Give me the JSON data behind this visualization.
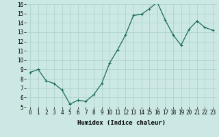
{
  "x": [
    0,
    1,
    2,
    3,
    4,
    5,
    6,
    7,
    8,
    9,
    10,
    11,
    12,
    13,
    14,
    15,
    16,
    17,
    18,
    19,
    20,
    21,
    22,
    23
  ],
  "y": [
    8.7,
    9.0,
    7.8,
    7.5,
    6.8,
    5.3,
    5.7,
    5.6,
    6.3,
    7.5,
    9.7,
    11.1,
    12.7,
    14.8,
    14.9,
    15.5,
    16.2,
    14.3,
    12.7,
    11.6,
    13.3,
    14.2,
    13.5,
    13.2
  ],
  "line_color": "#1a6b5a",
  "marker": "+",
  "marker_size": 3,
  "marker_lw": 0.8,
  "bg_color": "#cce8e4",
  "grid_color": "#aacfcb",
  "xlabel": "Humidex (Indice chaleur)",
  "ylim": [
    5,
    16
  ],
  "xlim": [
    -0.5,
    23.5
  ],
  "yticks": [
    5,
    6,
    7,
    8,
    9,
    10,
    11,
    12,
    13,
    14,
    15,
    16
  ],
  "xticks": [
    0,
    1,
    2,
    3,
    4,
    5,
    6,
    7,
    8,
    9,
    10,
    11,
    12,
    13,
    14,
    15,
    16,
    17,
    18,
    19,
    20,
    21,
    22,
    23
  ],
  "xtick_labels": [
    "0",
    "1",
    "2",
    "3",
    "4",
    "5",
    "6",
    "7",
    "8",
    "9",
    "10",
    "11",
    "12",
    "13",
    "14",
    "15",
    "16",
    "17",
    "18",
    "19",
    "20",
    "21",
    "22",
    "23"
  ],
  "label_fontsize": 6.5,
  "tick_fontsize": 5.5,
  "line_width": 0.9
}
